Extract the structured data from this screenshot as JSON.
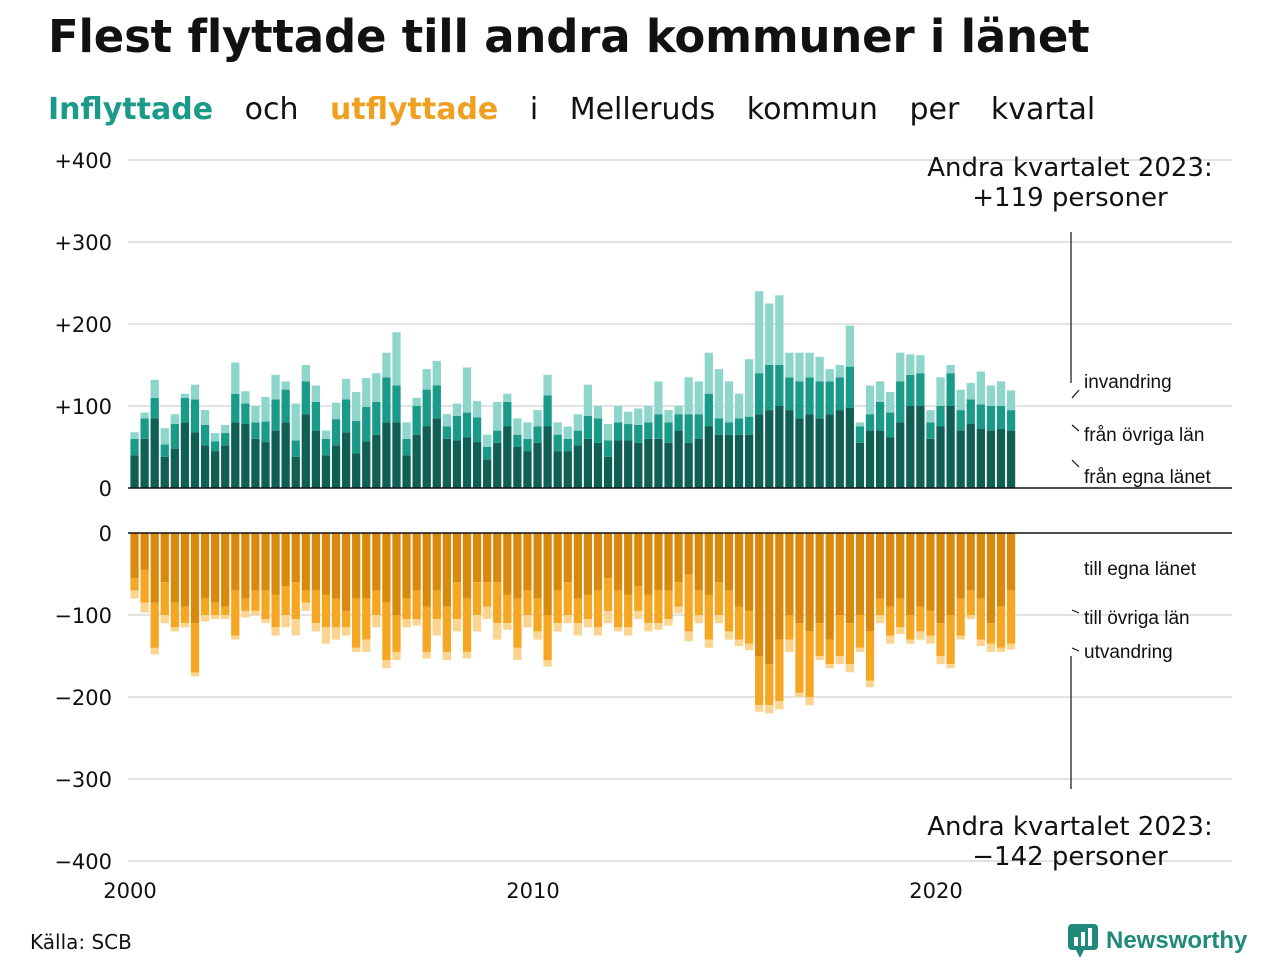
{
  "title": "Flest flyttade till andra kommuner i länet",
  "subtitle": {
    "in_word": "Inflyttade",
    "conj": "och",
    "out_word": "utflyttade",
    "rest": [
      "i",
      "Melleruds",
      "kommun",
      "per",
      "kvartal"
    ]
  },
  "source": "Källa: SCB",
  "brand": "Newsworthy",
  "colors": {
    "in_egna": "#0f5f55",
    "in_ovriga": "#1a9a88",
    "in_invandring": "#8ed5cc",
    "out_egna": "#d98a0e",
    "out_ovriga": "#f5a623",
    "out_utvandring": "#fbd48f",
    "grid": "#e3e3e3"
  },
  "chart_data": {
    "type": "bar",
    "stacked": true,
    "x_start": 2000,
    "x_end": 2023.25,
    "x_ticks": [
      "2000",
      "2010",
      "2020"
    ],
    "y_ticks_top": [
      "+400",
      "+300",
      "+200",
      "+100",
      "0"
    ],
    "y_ticks_bottom": [
      "0",
      "−100",
      "−200",
      "−300",
      "−400"
    ],
    "ylim_top": [
      0,
      400
    ],
    "ylim_bottom": [
      -400,
      0
    ],
    "grid": true,
    "labels_top": [
      "invandring",
      "från övriga län",
      "från egna länet"
    ],
    "labels_bottom": [
      "till egna länet",
      "till övriga län",
      "utvandring"
    ],
    "annotation_top": [
      "Andra kvartalet 2023:",
      "+119 personer"
    ],
    "annotation_bottom": [
      "Andra kvartalet 2023:",
      "−142 personer"
    ],
    "inflyttade": {
      "from_egna_lanet": [
        40,
        60,
        85,
        38,
        48,
        80,
        68,
        52,
        45,
        52,
        80,
        78,
        60,
        56,
        70,
        80,
        38,
        90,
        70,
        40,
        52,
        68,
        42,
        57,
        65,
        80,
        80,
        40,
        65,
        75,
        85,
        60,
        58,
        62,
        56,
        35,
        55,
        75,
        50,
        45,
        55,
        75,
        45,
        45,
        52,
        60,
        55,
        38,
        58,
        58,
        55,
        60,
        60,
        55,
        70,
        55,
        60,
        75,
        65,
        65,
        65,
        65,
        90,
        95,
        100,
        95,
        85,
        90,
        85,
        90,
        95,
        98,
        55,
        70,
        70,
        62,
        80,
        100,
        100,
        60,
        75,
        100,
        70,
        78,
        72,
        70,
        72,
        70
      ],
      "from_ovriga_lan": [
        20,
        25,
        25,
        15,
        30,
        30,
        40,
        25,
        12,
        15,
        35,
        25,
        20,
        25,
        38,
        40,
        20,
        40,
        35,
        20,
        32,
        40,
        40,
        42,
        40,
        55,
        45,
        20,
        35,
        45,
        40,
        15,
        30,
        30,
        30,
        15,
        15,
        30,
        15,
        15,
        20,
        38,
        20,
        15,
        18,
        28,
        30,
        20,
        22,
        20,
        22,
        20,
        30,
        25,
        20,
        35,
        30,
        40,
        20,
        15,
        20,
        22,
        50,
        55,
        50,
        40,
        45,
        45,
        45,
        40,
        40,
        50,
        20,
        20,
        35,
        30,
        50,
        38,
        40,
        20,
        25,
        40,
        25,
        30,
        30,
        30,
        28,
        25
      ],
      "invandring": [
        8,
        7,
        22,
        20,
        12,
        5,
        18,
        18,
        10,
        10,
        38,
        15,
        20,
        30,
        30,
        10,
        45,
        20,
        20,
        10,
        20,
        25,
        35,
        35,
        35,
        30,
        65,
        20,
        10,
        25,
        30,
        15,
        15,
        55,
        20,
        15,
        35,
        10,
        20,
        20,
        20,
        25,
        15,
        15,
        20,
        38,
        15,
        20,
        20,
        15,
        20,
        20,
        40,
        15,
        10,
        45,
        40,
        50,
        60,
        50,
        30,
        70,
        100,
        75,
        85,
        30,
        35,
        30,
        30,
        15,
        15,
        50,
        5,
        35,
        25,
        25,
        35,
        25,
        22,
        15,
        35,
        10,
        25,
        20,
        40,
        25,
        30,
        24
      ]
    },
    "utflyttade": {
      "till_egna_lanet": [
        55,
        45,
        85,
        60,
        85,
        90,
        110,
        80,
        85,
        90,
        70,
        80,
        70,
        70,
        75,
        65,
        60,
        70,
        70,
        75,
        80,
        95,
        80,
        80,
        70,
        85,
        100,
        80,
        70,
        90,
        70,
        90,
        60,
        80,
        60,
        60,
        60,
        75,
        80,
        70,
        80,
        100,
        70,
        60,
        80,
        75,
        70,
        55,
        70,
        75,
        65,
        75,
        70,
        70,
        60,
        50,
        70,
        75,
        60,
        70,
        90,
        95,
        150,
        160,
        130,
        100,
        110,
        120,
        110,
        130,
        100,
        110,
        100,
        120,
        80,
        90,
        80,
        100,
        90,
        95,
        110,
        100,
        80,
        70,
        80,
        110,
        90,
        70
      ],
      "till_ovriga_lan": [
        15,
        40,
        55,
        40,
        30,
        20,
        60,
        20,
        15,
        10,
        55,
        15,
        25,
        35,
        40,
        35,
        45,
        15,
        40,
        40,
        35,
        20,
        60,
        50,
        30,
        70,
        45,
        25,
        35,
        55,
        35,
        55,
        45,
        65,
        40,
        30,
        50,
        35,
        60,
        30,
        40,
        55,
        40,
        40,
        30,
        30,
        45,
        40,
        45,
        40,
        30,
        35,
        40,
        35,
        30,
        70,
        30,
        55,
        40,
        50,
        40,
        40,
        60,
        50,
        75,
        30,
        85,
        80,
        40,
        30,
        50,
        50,
        40,
        60,
        20,
        35,
        35,
        30,
        30,
        30,
        40,
        60,
        45,
        30,
        50,
        25,
        50,
        65
      ],
      "utvandring": [
        10,
        12,
        8,
        10,
        5,
        5,
        5,
        8,
        5,
        5,
        5,
        8,
        5,
        5,
        10,
        15,
        20,
        10,
        10,
        20,
        15,
        10,
        5,
        15,
        15,
        10,
        10,
        10,
        8,
        8,
        20,
        10,
        15,
        8,
        20,
        15,
        20,
        8,
        15,
        15,
        10,
        8,
        10,
        10,
        15,
        10,
        10,
        15,
        5,
        10,
        10,
        10,
        8,
        8,
        8,
        12,
        10,
        10,
        10,
        10,
        8,
        8,
        8,
        10,
        10,
        15,
        5,
        10,
        5,
        5,
        10,
        10,
        5,
        8,
        10,
        10,
        8,
        5,
        10,
        10,
        10,
        5,
        5,
        5,
        8,
        10,
        5,
        7
      ]
    }
  }
}
